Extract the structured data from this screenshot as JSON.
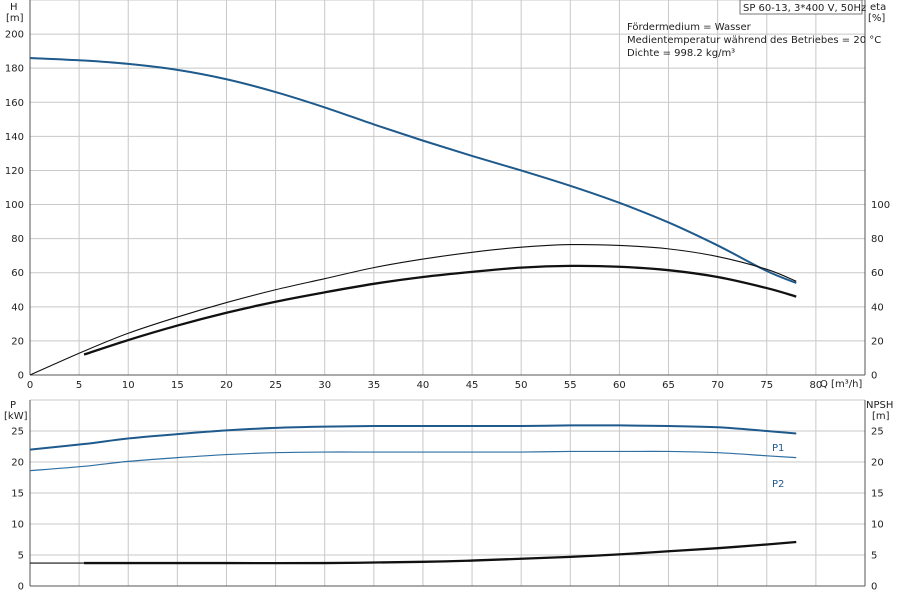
{
  "title_box": "SP 60-13, 3*400 V, 50Hz",
  "info": {
    "line1": "Fördermedium = Wasser",
    "line2": "Medientemperatur während des Betriebes = 20 °C",
    "line3": "Dichte = 998.2 kg/m³"
  },
  "colors": {
    "blue": "#1e5a8c",
    "black": "#111111",
    "grid": "#c8c8c8"
  },
  "chart_data": [
    {
      "type": "line",
      "panel": "top",
      "left_axis": {
        "label": "H",
        "unit": "[m]",
        "ylim": [
          0,
          220
        ],
        "ticks": [
          0,
          20,
          40,
          60,
          80,
          100,
          120,
          140,
          160,
          180,
          200
        ]
      },
      "right_axis": {
        "label": "eta",
        "unit": "[%]",
        "ylim": [
          0,
          220
        ],
        "ticks": [
          0,
          20,
          40,
          60,
          80,
          100
        ]
      },
      "x_axis": {
        "label": "Q [m³/h]",
        "xlim": [
          0,
          85
        ],
        "ticks": [
          0,
          5,
          10,
          15,
          20,
          25,
          30,
          35,
          40,
          45,
          50,
          55,
          60,
          65,
          70,
          75,
          80
        ]
      },
      "grid": true,
      "series": [
        {
          "name": "",
          "style": "thick-blue",
          "axis": "left",
          "x": [
            0,
            5.5,
            10,
            15,
            20,
            25,
            30,
            35,
            40,
            45,
            50,
            55,
            60,
            65,
            70,
            75,
            78
          ],
          "values": [
            186,
            184.5,
            182.5,
            179,
            173.5,
            166,
            157,
            147,
            137.5,
            128.5,
            120,
            111,
            101,
            89.5,
            76,
            61,
            54
          ]
        },
        {
          "name": "",
          "style": "thin-black",
          "axis": "right",
          "x": [
            0,
            5.5,
            10,
            15,
            20,
            25,
            30,
            35,
            40,
            45,
            50,
            55,
            60,
            65,
            70,
            75,
            78
          ],
          "values": [
            0,
            14,
            24.5,
            34,
            42.5,
            50,
            56.5,
            63,
            68,
            72,
            75,
            76.5,
            76,
            74,
            69.5,
            62,
            55
          ]
        },
        {
          "name": "",
          "style": "thick-black",
          "axis": "right",
          "x": [
            5.5,
            10,
            15,
            20,
            25,
            30,
            35,
            40,
            45,
            50,
            55,
            60,
            65,
            70,
            75,
            78
          ],
          "values": [
            12,
            20.5,
            29,
            36.5,
            43,
            48.5,
            53.5,
            57.5,
            60.5,
            63,
            64,
            63.5,
            61.5,
            57.5,
            51,
            46
          ]
        }
      ]
    },
    {
      "type": "line",
      "panel": "bottom",
      "left_axis": {
        "label": "P",
        "unit": "[kW]",
        "ylim": [
          0,
          30
        ],
        "ticks": [
          0,
          5,
          10,
          15,
          20,
          25
        ]
      },
      "right_axis": {
        "label": "NPSH",
        "unit": "[m]",
        "ylim": [
          0,
          30
        ],
        "ticks": [
          0,
          5,
          10,
          15,
          20,
          25
        ]
      },
      "x_axis": {
        "xlim": [
          0,
          85
        ]
      },
      "grid": true,
      "series": [
        {
          "name": "P1",
          "style": "thick-blue",
          "axis": "left",
          "x": [
            0,
            5.5,
            10,
            15,
            20,
            25,
            30,
            35,
            40,
            45,
            50,
            55,
            60,
            65,
            70,
            75,
            78
          ],
          "values": [
            22,
            22.9,
            23.8,
            24.5,
            25.1,
            25.5,
            25.7,
            25.8,
            25.8,
            25.8,
            25.8,
            25.9,
            25.9,
            25.8,
            25.6,
            25.0,
            24.6
          ]
        },
        {
          "name": "P2",
          "style": "thin-blue",
          "axis": "left",
          "x": [
            0,
            5.5,
            10,
            15,
            20,
            25,
            30,
            35,
            40,
            45,
            50,
            55,
            60,
            65,
            70,
            75,
            78
          ],
          "values": [
            18.6,
            19.3,
            20.1,
            20.7,
            21.2,
            21.5,
            21.6,
            21.6,
            21.6,
            21.6,
            21.6,
            21.7,
            21.7,
            21.7,
            21.5,
            21.0,
            20.7
          ]
        },
        {
          "name": "",
          "style": "thin-black",
          "axis": "right",
          "x": [
            0,
            5.5
          ],
          "values": [
            3.7,
            3.7
          ]
        },
        {
          "name": "",
          "style": "thick-black",
          "axis": "right",
          "x": [
            5.5,
            10,
            20,
            30,
            40,
            45,
            50,
            55,
            60,
            65,
            70,
            75,
            78
          ],
          "values": [
            3.7,
            3.7,
            3.7,
            3.7,
            3.9,
            4.1,
            4.4,
            4.7,
            5.1,
            5.6,
            6.1,
            6.7,
            7.1
          ]
        }
      ]
    }
  ]
}
